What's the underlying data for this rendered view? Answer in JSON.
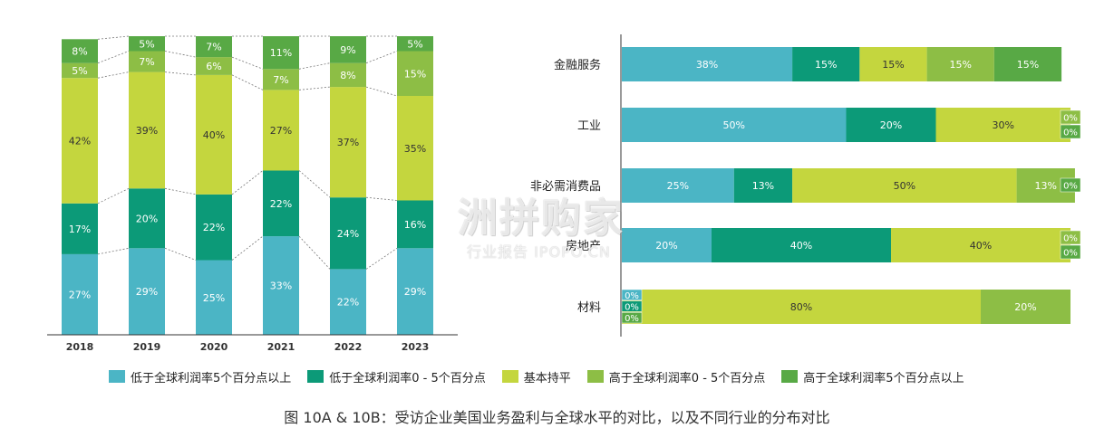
{
  "colors": {
    "lt_below5": "#4BB5C5",
    "lt_0to5": "#0C9A78",
    "flat": "#C4D63E",
    "gt_0to5": "#8DBE45",
    "gt_above5": "#58A945"
  },
  "legend": [
    {
      "label": "低于全球利润率5个百分点以上",
      "color_key": "lt_below5"
    },
    {
      "label": "低于全球利润率0 - 5个百分点",
      "color_key": "lt_0to5"
    },
    {
      "label": "基本持平",
      "color_key": "flat"
    },
    {
      "label": "高于全球利润率0 - 5个百分点",
      "color_key": "gt_0to5"
    },
    {
      "label": "高于全球利润率5个百分点以上",
      "color_key": "gt_above5"
    }
  ],
  "caption": "图 10A & 10B：受访企业美国业务盈利与全球水平的对比，以及不同行业的分布对比",
  "watermark": {
    "main": "洲拼购家",
    "sub": "行业报告 IPOPO.CN"
  },
  "chart_data": [
    {
      "type": "bar",
      "stacked": true,
      "orientation": "vertical",
      "categories": [
        "2018",
        "2019",
        "2020",
        "2021",
        "2022",
        "2023"
      ],
      "series": [
        {
          "name": "低于全球利润率5个百分点以上",
          "color_key": "lt_below5",
          "values": [
            27,
            29,
            25,
            33,
            22,
            29
          ]
        },
        {
          "name": "低于全球利润率0 - 5个百分点",
          "color_key": "lt_0to5",
          "values": [
            17,
            20,
            22,
            22,
            24,
            16
          ]
        },
        {
          "name": "基本持平",
          "color_key": "flat",
          "values": [
            42,
            39,
            40,
            27,
            37,
            35
          ]
        },
        {
          "name": "高于全球利润率0 - 5个百分点",
          "color_key": "gt_0to5",
          "values": [
            5,
            7,
            6,
            7,
            8,
            15
          ]
        },
        {
          "name": "高于全球利润率5个百分点以上",
          "color_key": "gt_above5",
          "values": [
            8,
            5,
            7,
            11,
            9,
            5
          ]
        }
      ],
      "ylim": [
        0,
        100
      ]
    },
    {
      "type": "bar",
      "stacked": true,
      "orientation": "horizontal",
      "categories": [
        "金融服务",
        "工业",
        "非必需消费品",
        "房地产",
        "材料"
      ],
      "series": [
        {
          "name": "低于全球利润率5个百分点以上",
          "color_key": "lt_below5",
          "values": [
            38,
            50,
            25,
            20,
            0
          ]
        },
        {
          "name": "低于全球利润率0 - 5个百分点",
          "color_key": "lt_0to5",
          "values": [
            15,
            20,
            13,
            40,
            0
          ]
        },
        {
          "name": "基本持平",
          "color_key": "flat",
          "values": [
            15,
            30,
            50,
            40,
            80
          ]
        },
        {
          "name": "高于全球利润率0 - 5个百分点",
          "color_key": "gt_0to5",
          "values": [
            15,
            0,
            13,
            0,
            20
          ]
        },
        {
          "name": "高于全球利润率5个百分点以上",
          "color_key": "gt_above5",
          "values": [
            15,
            0,
            0,
            0,
            0
          ]
        }
      ],
      "xlim": [
        0,
        100
      ]
    }
  ]
}
